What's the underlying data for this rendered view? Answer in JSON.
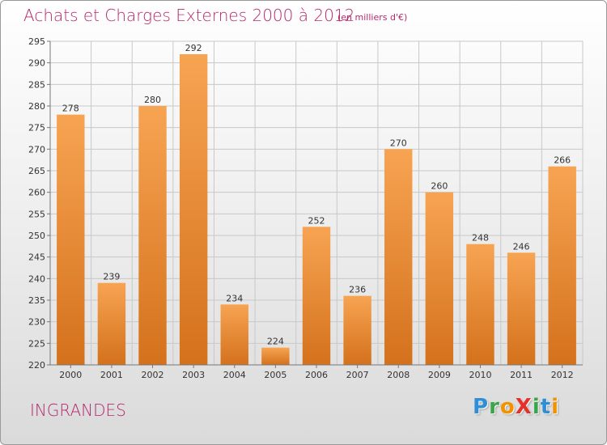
{
  "title": "Achats et Charges Externes 2000 à 2012",
  "subtitle": "(en milliers d'€)",
  "commune": "INGRANDES",
  "logo": {
    "letters": [
      {
        "ch": "P",
        "color": "#2f8fd6"
      },
      {
        "ch": "r",
        "color": "#3aa54a"
      },
      {
        "ch": "o",
        "color": "#f39200"
      },
      {
        "ch": "X",
        "color": "#e4322b"
      },
      {
        "ch": "i",
        "color": "#3aa54a"
      },
      {
        "ch": "t",
        "color": "#2f8fd6"
      },
      {
        "ch": "i",
        "color": "#f39200"
      }
    ]
  },
  "colors": {
    "title": "#b5296e",
    "bar_top": "#f7a452",
    "bar_bottom": "#d4711c",
    "grid": "#c8c8c8"
  },
  "chart_data": {
    "type": "bar",
    "categories": [
      "2000",
      "2001",
      "2002",
      "2003",
      "2004",
      "2005",
      "2006",
      "2007",
      "2008",
      "2009",
      "2010",
      "2011",
      "2012"
    ],
    "values": [
      278,
      239,
      280,
      292,
      234,
      224,
      252,
      236,
      270,
      260,
      248,
      246,
      266
    ],
    "ylim": [
      220,
      295
    ],
    "yticks": [
      220,
      225,
      230,
      235,
      240,
      245,
      250,
      255,
      260,
      265,
      270,
      275,
      280,
      285,
      290,
      295
    ],
    "grid": true,
    "xlabel": "",
    "ylabel": ""
  }
}
